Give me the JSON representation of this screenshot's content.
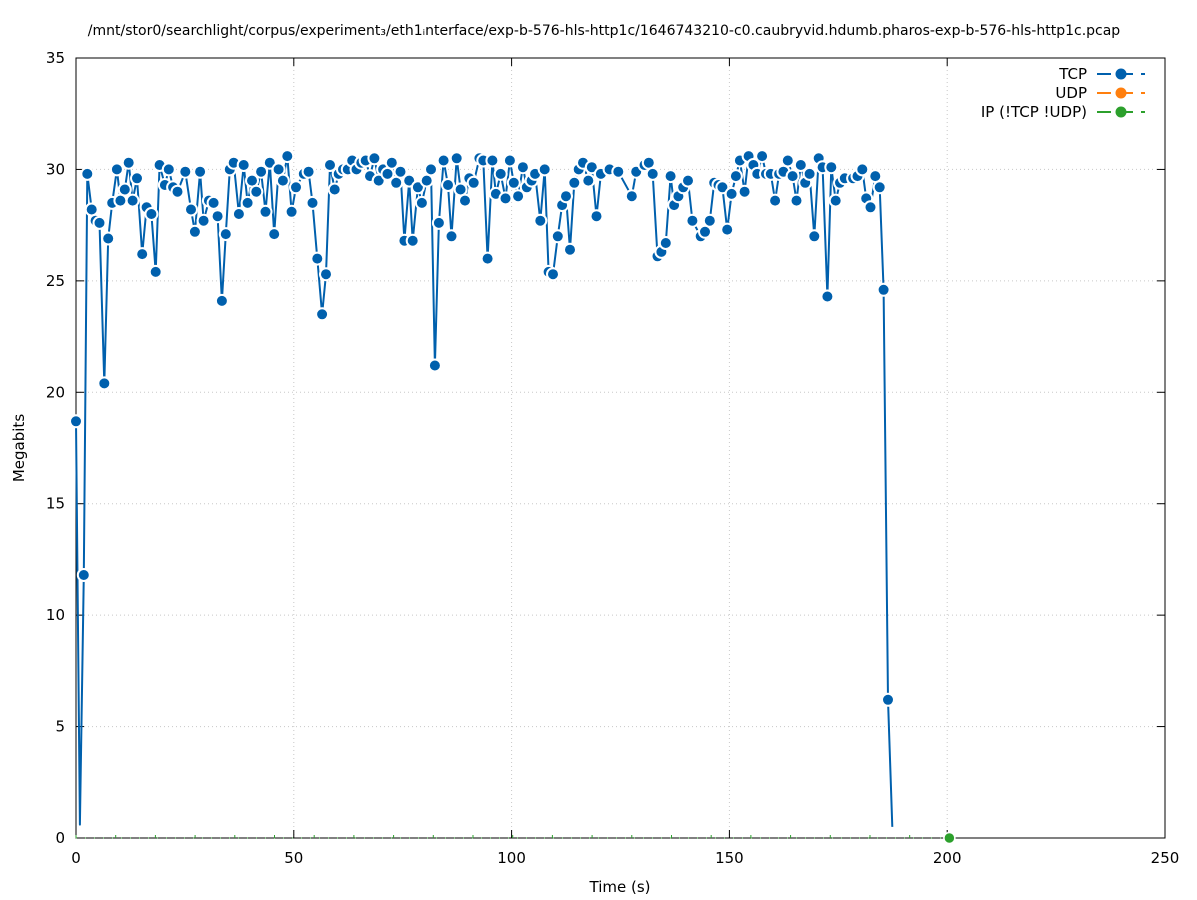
{
  "chart_data": {
    "type": "line",
    "title": "/mnt/stor0/searchlight/corpus/experiment₃/eth1ᵢnterface/exp-b-576-hls-http1c/1646743210-c0.caubryvid.hdumb.pharos-exp-b-576-hls-http1c.pcap",
    "xlabel": "Time (s)",
    "ylabel": "Megabits",
    "xlim": [
      0,
      250
    ],
    "ylim": [
      0,
      35
    ],
    "x_ticks": [
      0,
      50,
      100,
      150,
      200,
      250
    ],
    "y_ticks": [
      0,
      5,
      10,
      15,
      20,
      25,
      30,
      35
    ],
    "grid": true,
    "legend_position": "top-right",
    "series": [
      {
        "name": "TCP",
        "color": "#0060ad",
        "points": [
          [
            0.0,
            18.7
          ],
          [
            0.9,
            0.6
          ],
          [
            1.8,
            11.8
          ],
          [
            2.6,
            29.8
          ],
          [
            3.6,
            28.2
          ],
          [
            4.5,
            27.7
          ],
          [
            5.4,
            27.6
          ],
          [
            6.5,
            20.4
          ],
          [
            7.4,
            26.9
          ],
          [
            8.3,
            28.5
          ],
          [
            9.4,
            30.0
          ],
          [
            10.2,
            28.6
          ],
          [
            11.2,
            29.1
          ],
          [
            12.1,
            30.3
          ],
          [
            13.0,
            28.6
          ],
          [
            14.0,
            29.6
          ],
          [
            15.2,
            26.2
          ],
          [
            16.2,
            28.3
          ],
          [
            17.3,
            28.0
          ],
          [
            18.3,
            25.4
          ],
          [
            19.2,
            30.2
          ],
          [
            20.4,
            29.3
          ],
          [
            21.3,
            30.0
          ],
          [
            22.3,
            29.2
          ],
          [
            23.3,
            29.0
          ],
          [
            25.1,
            29.9
          ],
          [
            26.4,
            28.2
          ],
          [
            27.3,
            27.2
          ],
          [
            28.5,
            29.9
          ],
          [
            29.3,
            27.7
          ],
          [
            30.5,
            28.6
          ],
          [
            31.6,
            28.5
          ],
          [
            32.5,
            27.9
          ],
          [
            33.5,
            24.1
          ],
          [
            34.4,
            27.1
          ],
          [
            35.3,
            30.0
          ],
          [
            36.2,
            30.3
          ],
          [
            37.4,
            28.0
          ],
          [
            38.5,
            30.2
          ],
          [
            39.4,
            28.5
          ],
          [
            40.4,
            29.5
          ],
          [
            41.4,
            29.0
          ],
          [
            42.5,
            29.9
          ],
          [
            43.5,
            28.1
          ],
          [
            44.5,
            30.3
          ],
          [
            45.5,
            27.1
          ],
          [
            46.5,
            30.0
          ],
          [
            47.5,
            29.5
          ],
          [
            48.5,
            30.6
          ],
          [
            49.5,
            28.1
          ],
          [
            50.5,
            29.2
          ],
          [
            52.3,
            29.8
          ],
          [
            53.4,
            29.9
          ],
          [
            54.3,
            28.5
          ],
          [
            55.4,
            26.0
          ],
          [
            56.5,
            23.5
          ],
          [
            57.4,
            25.3
          ],
          [
            58.3,
            30.2
          ],
          [
            59.4,
            29.1
          ],
          [
            60.3,
            29.8
          ],
          [
            61.3,
            30.0
          ],
          [
            62.4,
            30.0
          ],
          [
            63.4,
            30.4
          ],
          [
            64.4,
            30.0
          ],
          [
            65.5,
            30.3
          ],
          [
            66.5,
            30.4
          ],
          [
            67.5,
            29.7
          ],
          [
            68.5,
            30.5
          ],
          [
            69.5,
            29.5
          ],
          [
            70.5,
            30.0
          ],
          [
            71.5,
            29.8
          ],
          [
            72.5,
            30.3
          ],
          [
            73.5,
            29.4
          ],
          [
            74.5,
            29.9
          ],
          [
            75.4,
            26.8
          ],
          [
            76.5,
            29.5
          ],
          [
            77.3,
            26.8
          ],
          [
            78.5,
            29.2
          ],
          [
            79.4,
            28.5
          ],
          [
            80.5,
            29.5
          ],
          [
            81.5,
            30.0
          ],
          [
            82.4,
            21.2
          ],
          [
            83.3,
            27.6
          ],
          [
            84.4,
            30.4
          ],
          [
            85.4,
            29.3
          ],
          [
            86.2,
            27.0
          ],
          [
            87.4,
            30.5
          ],
          [
            88.3,
            29.1
          ],
          [
            89.3,
            28.6
          ],
          [
            90.3,
            29.6
          ],
          [
            91.3,
            29.4
          ],
          [
            92.6,
            30.5
          ],
          [
            93.5,
            30.4
          ],
          [
            94.5,
            26.0
          ],
          [
            95.6,
            30.4
          ],
          [
            96.4,
            28.9
          ],
          [
            97.5,
            29.8
          ],
          [
            98.6,
            28.7
          ],
          [
            99.6,
            30.4
          ],
          [
            100.5,
            29.4
          ],
          [
            101.5,
            28.8
          ],
          [
            102.6,
            30.1
          ],
          [
            103.5,
            29.2
          ],
          [
            104.6,
            29.5
          ],
          [
            105.4,
            29.8
          ],
          [
            106.6,
            27.7
          ],
          [
            107.6,
            30.0
          ],
          [
            108.5,
            25.4
          ],
          [
            109.5,
            25.3
          ],
          [
            110.6,
            27.0
          ],
          [
            111.6,
            28.4
          ],
          [
            112.5,
            28.8
          ],
          [
            113.4,
            26.4
          ],
          [
            114.4,
            29.4
          ],
          [
            115.4,
            30.0
          ],
          [
            116.4,
            30.3
          ],
          [
            117.6,
            29.5
          ],
          [
            118.4,
            30.1
          ],
          [
            119.5,
            27.9
          ],
          [
            120.5,
            29.8
          ],
          [
            122.5,
            30.0
          ],
          [
            124.5,
            29.9
          ],
          [
            127.6,
            28.8
          ],
          [
            128.6,
            29.9
          ],
          [
            130.5,
            30.2
          ],
          [
            131.5,
            30.3
          ],
          [
            132.4,
            29.8
          ],
          [
            133.5,
            26.1
          ],
          [
            134.4,
            26.3
          ],
          [
            135.4,
            26.7
          ],
          [
            136.5,
            29.7
          ],
          [
            137.3,
            28.4
          ],
          [
            138.3,
            28.8
          ],
          [
            139.4,
            29.2
          ],
          [
            140.5,
            29.5
          ],
          [
            141.5,
            27.7
          ],
          [
            143.4,
            27.0
          ],
          [
            144.4,
            27.2
          ],
          [
            145.5,
            27.7
          ],
          [
            146.5,
            29.4
          ],
          [
            147.5,
            29.3
          ],
          [
            148.4,
            29.2
          ],
          [
            149.5,
            27.3
          ],
          [
            150.5,
            28.9
          ],
          [
            151.5,
            29.7
          ],
          [
            152.4,
            30.4
          ],
          [
            153.5,
            29.0
          ],
          [
            154.4,
            30.6
          ],
          [
            155.5,
            30.2
          ],
          [
            156.4,
            29.8
          ],
          [
            157.5,
            30.6
          ],
          [
            158.4,
            29.8
          ],
          [
            159.5,
            29.8
          ],
          [
            160.5,
            28.6
          ],
          [
            161.4,
            29.8
          ],
          [
            162.4,
            29.9
          ],
          [
            163.4,
            30.4
          ],
          [
            164.5,
            29.7
          ],
          [
            165.4,
            28.6
          ],
          [
            166.4,
            30.2
          ],
          [
            167.4,
            29.4
          ],
          [
            168.4,
            29.8
          ],
          [
            169.5,
            27.0
          ],
          [
            170.5,
            30.5
          ],
          [
            171.4,
            30.1
          ],
          [
            172.5,
            24.3
          ],
          [
            173.4,
            30.1
          ],
          [
            174.4,
            28.6
          ],
          [
            175.4,
            29.4
          ],
          [
            176.5,
            29.6
          ],
          [
            178.4,
            29.6
          ],
          [
            179.4,
            29.7
          ],
          [
            180.5,
            30.0
          ],
          [
            181.4,
            28.7
          ],
          [
            182.4,
            28.3
          ],
          [
            183.5,
            29.7
          ],
          [
            184.5,
            29.2
          ],
          [
            185.4,
            24.6
          ],
          [
            186.4,
            6.2
          ],
          [
            187.4,
            0.5
          ]
        ]
      },
      {
        "name": "UDP",
        "color": "#ff7f0e",
        "points": []
      },
      {
        "name": "IP (!TCP  !UDP)",
        "color": "#2ca02c",
        "points": [
          [
            0,
            0
          ],
          [
            200.5,
            0
          ]
        ]
      }
    ]
  }
}
